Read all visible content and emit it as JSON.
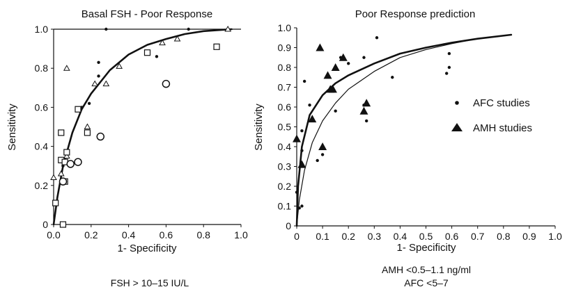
{
  "chart_data": [
    {
      "type": "scatter",
      "title": "Basal FSH - Poor Response",
      "xlabel": "1- Specificity",
      "ylabel": "Sensitivity",
      "xlim": [
        0,
        1
      ],
      "ylim": [
        0,
        1
      ],
      "x_ticks": [
        "0.0",
        "0.2",
        "0.4",
        "0.6",
        "0.8",
        "1.0"
      ],
      "y_ticks": [
        "0",
        "0.2",
        "0.4",
        "0.6",
        "0.8",
        "1.0"
      ],
      "note": "FSH > 10–15 IU/L",
      "grid": false,
      "series": [
        {
          "marker": "dot",
          "points": [
            [
              0.28,
              1.0
            ],
            [
              0.72,
              1.0
            ],
            [
              0.24,
              0.83
            ],
            [
              0.24,
              0.76
            ],
            [
              0.09,
              0.3
            ],
            [
              0.19,
              0.62
            ],
            [
              0.55,
              0.86
            ],
            [
              0.05,
              0.3
            ],
            [
              0.15,
              0.6
            ]
          ]
        },
        {
          "marker": "triangle",
          "points": [
            [
              0.0,
              0.24
            ],
            [
              0.07,
              0.8
            ],
            [
              0.07,
              0.35
            ],
            [
              0.18,
              0.5
            ],
            [
              0.22,
              0.72
            ],
            [
              0.28,
              0.72
            ],
            [
              0.35,
              0.81
            ],
            [
              0.58,
              0.93
            ],
            [
              0.66,
              0.95
            ],
            [
              0.93,
              1.0
            ],
            [
              0.04,
              0.26
            ]
          ]
        },
        {
          "marker": "square",
          "points": [
            [
              0.01,
              0.11
            ],
            [
              0.04,
              0.47
            ],
            [
              0.04,
              0.33
            ],
            [
              0.06,
              0.32
            ],
            [
              0.06,
              0.22
            ],
            [
              0.07,
              0.37
            ],
            [
              0.13,
              0.59
            ],
            [
              0.18,
              0.47
            ],
            [
              0.5,
              0.88
            ],
            [
              0.87,
              0.91
            ],
            [
              0.05,
              0.0
            ]
          ]
        },
        {
          "marker": "circle",
          "points": [
            [
              0.05,
              0.22
            ],
            [
              0.09,
              0.31
            ],
            [
              0.13,
              0.32
            ],
            [
              0.25,
              0.45
            ],
            [
              0.6,
              0.72
            ]
          ]
        }
      ],
      "curves": [
        {
          "style": "thick",
          "points": [
            [
              0,
              0
            ],
            [
              0.02,
              0.14
            ],
            [
              0.05,
              0.3
            ],
            [
              0.1,
              0.47
            ],
            [
              0.15,
              0.59
            ],
            [
              0.2,
              0.67
            ],
            [
              0.3,
              0.79
            ],
            [
              0.4,
              0.87
            ],
            [
              0.5,
              0.92
            ],
            [
              0.6,
              0.95
            ],
            [
              0.7,
              0.975
            ],
            [
              0.8,
              0.99
            ],
            [
              0.95,
              1.0
            ]
          ]
        }
      ]
    },
    {
      "type": "scatter",
      "title": "Poor Response prediction",
      "xlabel": "1- Specificity",
      "ylabel": "Sensitivity",
      "xlim": [
        0,
        1
      ],
      "ylim": [
        0,
        1
      ],
      "x_ticks": [
        "0",
        "0.1",
        "0.2",
        "0.3",
        "0.4",
        "0.5",
        "0.6",
        "0.7",
        "0.8",
        "0.9",
        "1.0"
      ],
      "y_ticks": [
        "0",
        "0.1",
        "0.2",
        "0.3",
        "0.4",
        "0.5",
        "0.6",
        "0.7",
        "0.8",
        "0.9",
        "1.0"
      ],
      "note_lines": [
        "AMH <0.5–1.1 ng/ml",
        "AFC <5–7"
      ],
      "legend": [
        {
          "label": "AFC studies",
          "marker": "dot"
        },
        {
          "label": "AMH studies",
          "marker": "triangle"
        }
      ],
      "grid": false,
      "series": [
        {
          "name": "AFC studies",
          "marker": "dot",
          "points": [
            [
              0.31,
              0.95
            ],
            [
              0.17,
              0.85
            ],
            [
              0.26,
              0.85
            ],
            [
              0.2,
              0.82
            ],
            [
              0.37,
              0.75
            ],
            [
              0.03,
              0.73
            ],
            [
              0.05,
              0.61
            ],
            [
              0.15,
              0.58
            ],
            [
              0.26,
              0.61
            ],
            [
              0.27,
              0.53
            ],
            [
              0.02,
              0.48
            ],
            [
              0.02,
              0.38
            ],
            [
              0.08,
              0.33
            ],
            [
              0.1,
              0.36
            ],
            [
              0.0,
              0.17
            ],
            [
              0.02,
              0.1
            ],
            [
              0.01,
              0.09
            ],
            [
              0.59,
              0.87
            ],
            [
              0.59,
              0.8
            ],
            [
              0.58,
              0.77
            ]
          ]
        },
        {
          "name": "AMH studies",
          "marker": "triangle",
          "points": [
            [
              0.0,
              0.44
            ],
            [
              0.06,
              0.54
            ],
            [
              0.09,
              0.9
            ],
            [
              0.12,
              0.76
            ],
            [
              0.13,
              0.69
            ],
            [
              0.14,
              0.69
            ],
            [
              0.15,
              0.8
            ],
            [
              0.18,
              0.85
            ],
            [
              0.26,
              0.58
            ],
            [
              0.27,
              0.62
            ],
            [
              0.1,
              0.4
            ],
            [
              0.02,
              0.31
            ]
          ]
        }
      ],
      "curves": [
        {
          "style": "thick",
          "points": [
            [
              0,
              0
            ],
            [
              0.005,
              0.2
            ],
            [
              0.02,
              0.4
            ],
            [
              0.05,
              0.56
            ],
            [
              0.1,
              0.66
            ],
            [
              0.15,
              0.72
            ],
            [
              0.2,
              0.76
            ],
            [
              0.3,
              0.82
            ],
            [
              0.4,
              0.87
            ],
            [
              0.5,
              0.9
            ],
            [
              0.6,
              0.925
            ],
            [
              0.7,
              0.945
            ],
            [
              0.83,
              0.965
            ]
          ]
        },
        {
          "style": "thin",
          "points": [
            [
              0,
              0
            ],
            [
              0.01,
              0.13
            ],
            [
              0.03,
              0.28
            ],
            [
              0.06,
              0.42
            ],
            [
              0.1,
              0.53
            ],
            [
              0.15,
              0.62
            ],
            [
              0.2,
              0.69
            ],
            [
              0.3,
              0.78
            ],
            [
              0.4,
              0.85
            ],
            [
              0.5,
              0.89
            ],
            [
              0.6,
              0.92
            ],
            [
              0.7,
              0.945
            ],
            [
              0.83,
              0.965
            ]
          ]
        }
      ]
    }
  ]
}
